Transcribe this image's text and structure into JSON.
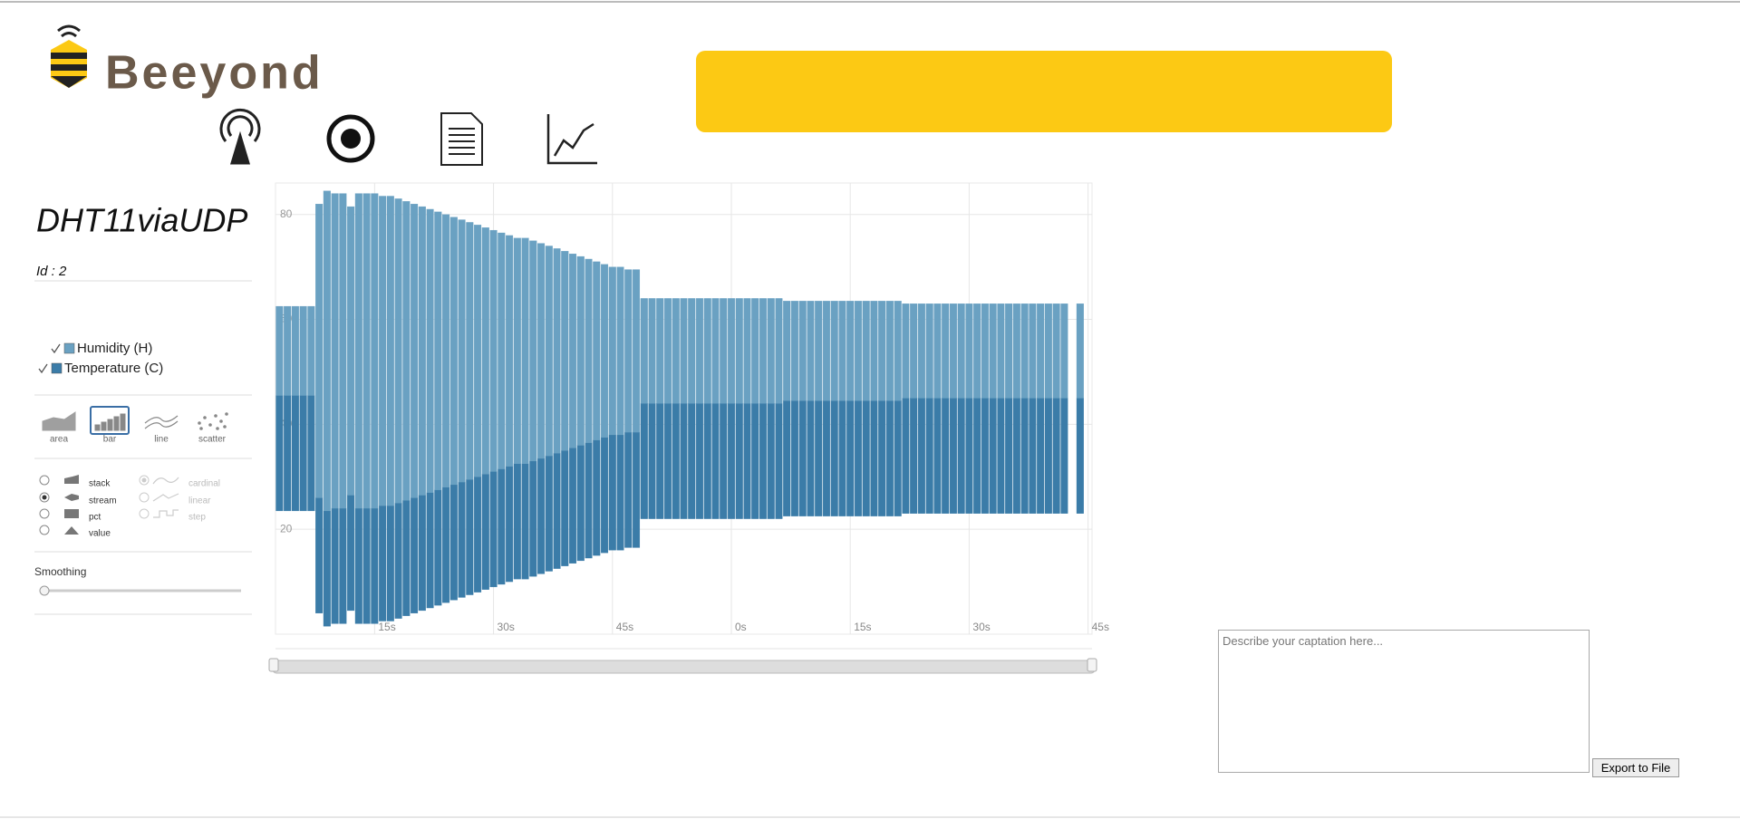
{
  "header": {
    "logo_text": "Beeyond"
  },
  "device": {
    "name": "DHT11viaUDP",
    "id_label": "Id : 2"
  },
  "chart_data": {
    "type": "bar",
    "offset": "stream",
    "x": [
      3,
      4,
      5,
      6,
      7,
      8,
      9,
      10,
      11,
      12,
      13,
      14,
      15,
      16,
      17,
      18,
      19,
      20,
      21,
      22,
      23,
      24,
      25,
      26,
      27,
      28,
      29,
      30,
      31,
      32,
      33,
      34,
      35,
      36,
      37,
      38,
      39,
      40,
      41,
      42,
      43,
      44,
      45,
      46,
      47,
      48,
      49,
      50,
      51,
      52,
      53,
      54,
      55,
      56,
      57,
      58,
      59,
      60,
      61,
      62,
      63,
      64,
      65,
      66,
      67,
      68,
      69,
      70,
      71,
      72,
      73,
      74,
      75,
      76,
      77,
      78,
      79,
      80,
      81,
      82,
      83,
      84,
      85,
      86,
      87,
      88,
      89,
      90,
      91,
      92,
      93,
      94,
      95,
      96,
      97,
      98,
      99,
      100,
      101,
      102,
      103,
      104
    ],
    "series": [
      {
        "name": "Humidity (H)",
        "color": "#6aa1c2",
        "values": [
          17,
          17,
          17,
          17,
          17,
          56,
          61,
          60,
          60,
          55,
          60,
          60,
          60,
          59,
          59,
          58,
          57,
          56,
          55,
          54,
          53,
          52,
          51,
          50,
          49,
          48,
          47,
          46,
          45,
          44,
          43,
          43,
          42,
          41,
          40,
          39,
          38,
          37,
          36,
          35,
          34,
          33,
          32,
          32,
          31,
          31,
          20,
          20,
          20,
          20,
          20,
          20,
          20,
          20,
          20,
          20,
          20,
          20,
          20,
          20,
          20,
          20,
          20,
          20,
          19,
          19,
          19,
          19,
          19,
          19,
          19,
          19,
          19,
          19,
          19,
          19,
          19,
          19,
          19,
          18,
          18,
          18,
          18,
          18,
          18,
          18,
          18,
          18,
          18,
          18,
          18,
          18,
          18,
          18,
          18,
          18,
          18,
          18,
          18,
          18,
          null,
          18
        ]
      },
      {
        "name": "Temperature (C)",
        "color": "#3b7ca8",
        "values": [
          22,
          22,
          22,
          22,
          22,
          22,
          22,
          22,
          22,
          22,
          22,
          22,
          22,
          22,
          22,
          22,
          22,
          22,
          22,
          22,
          22,
          22,
          22,
          22,
          22,
          22,
          22,
          22,
          22,
          22,
          22,
          22,
          22,
          22,
          22,
          22,
          22,
          22,
          22,
          22,
          22,
          22,
          22,
          22,
          22,
          22,
          22,
          22,
          22,
          22,
          22,
          22,
          22,
          22,
          22,
          22,
          22,
          22,
          22,
          22,
          22,
          22,
          22,
          22,
          22,
          22,
          22,
          22,
          22,
          22,
          22,
          22,
          22,
          22,
          22,
          22,
          22,
          22,
          22,
          22,
          22,
          22,
          22,
          22,
          22,
          22,
          22,
          22,
          22,
          22,
          22,
          22,
          22,
          22,
          22,
          22,
          22,
          22,
          22,
          22,
          null,
          22
        ]
      }
    ],
    "xlim": [
      2.5,
      105.5
    ],
    "xticks": [
      {
        "value": 15,
        "label": "15s"
      },
      {
        "value": 30,
        "label": "30s"
      },
      {
        "value": 45,
        "label": "45s"
      },
      {
        "value": 60,
        "label": "0s"
      },
      {
        "value": 75,
        "label": "15s"
      },
      {
        "value": 90,
        "label": "30s"
      },
      {
        "value": 105,
        "label": "45s"
      }
    ],
    "ylim": [
      0,
      86
    ],
    "yticks": [
      20,
      40,
      60,
      80
    ],
    "grid": true
  },
  "controls": {
    "renderers": [
      {
        "label": "area"
      },
      {
        "label": "bar",
        "active": true
      },
      {
        "label": "line"
      },
      {
        "label": "scatter"
      }
    ],
    "offsets": [
      {
        "label": "stack"
      },
      {
        "label": "stream",
        "checked": true
      },
      {
        "label": "pct"
      },
      {
        "label": "value"
      }
    ],
    "interpolation": {
      "disabled": true,
      "options": [
        {
          "label": "cardinal",
          "checked": true
        },
        {
          "label": "linear"
        },
        {
          "label": "step"
        }
      ]
    },
    "smoothing_label": "Smoothing"
  },
  "caption": {
    "placeholder": "Describe your captation here...",
    "export_button": "Export to File"
  }
}
